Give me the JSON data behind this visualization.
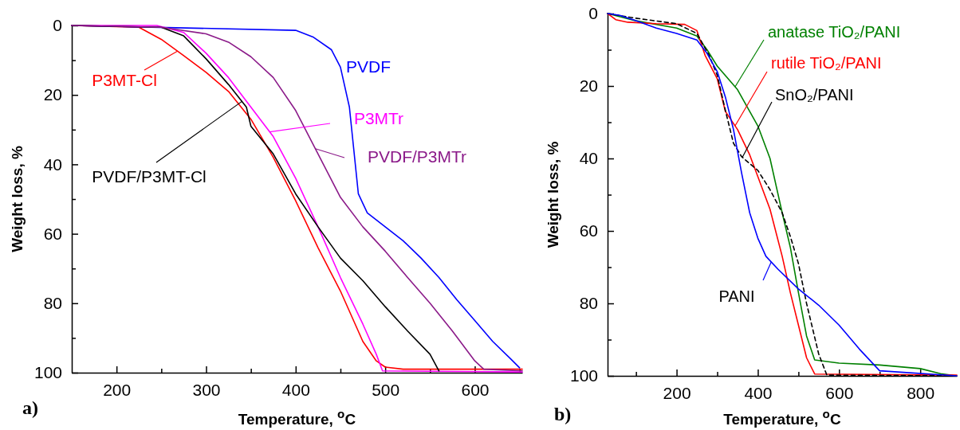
{
  "chart_data": [
    {
      "type": "line",
      "xlabel": "Temperature, $^{o}$C",
      "ylabel": "Weight loss, %",
      "annotations": [
        "a)"
      ],
      "xlim": [
        150,
        653
      ],
      "ylim": [
        100,
        0
      ],
      "xticks": [
        200,
        {
          "value": 250,
          "label": null
        },
        300,
        {
          "value": 350,
          "label": null
        },
        400,
        {
          "value": 450,
          "label": null
        },
        500,
        {
          "value": 550,
          "label": null
        },
        600,
        {
          "value": 650,
          "label": null
        }
      ],
      "yticks": [
        0,
        {
          "value": 10,
          "label": null
        },
        20,
        {
          "value": 30,
          "label": null
        },
        40,
        {
          "value": 50,
          "label": null
        },
        60,
        {
          "value": 70,
          "label": null
        },
        80,
        {
          "value": 90,
          "label": null
        },
        100
      ],
      "grid": false,
      "legend": "right",
      "marker": "none",
      "series": [
        {
          "name": "P3MT-Cl",
          "color": "#ff0000",
          "x": [
            150,
            225,
            250,
            275,
            300,
            325,
            350,
            375,
            400,
            425,
            450,
            475,
            490,
            500,
            520,
            653
          ],
          "values": [
            0,
            0.5,
            4,
            8.7,
            13.5,
            19,
            27,
            38,
            50.5,
            64,
            76.5,
            91,
            96.6,
            98.4,
            99,
            99
          ]
        },
        {
          "name": "PVDF",
          "color": "#0000ff",
          "x": [
            150,
            400,
            420,
            440,
            450,
            460,
            465,
            470,
            480,
            500,
            520,
            540,
            560,
            580,
            600,
            620,
            640,
            650
          ],
          "values": [
            0,
            1.4,
            3.4,
            7,
            12,
            23.5,
            36,
            48.5,
            54,
            58,
            62,
            67,
            72.6,
            79,
            85,
            91,
            96,
            98.6
          ]
        },
        {
          "name": "P3MTr",
          "color": "#ff00ff",
          "x": [
            150,
            245,
            275,
            300,
            325,
            350,
            375,
            400,
            425,
            450,
            475,
            490,
            497,
            653
          ],
          "values": [
            0,
            0,
            2,
            8,
            15,
            23.5,
            32,
            44,
            58,
            72.6,
            86,
            94.7,
            99.5,
            99.8
          ]
        },
        {
          "name": "PVDF/P3MT-Cl",
          "color": "#000000",
          "x": [
            150,
            250,
            275,
            300,
            325,
            345,
            350,
            375,
            400,
            425,
            450,
            475,
            500,
            525,
            550,
            560
          ],
          "values": [
            0,
            0.5,
            3,
            9.6,
            17,
            23.5,
            29,
            37,
            48.5,
            58,
            67,
            73.5,
            81,
            88,
            94.7,
            99.5
          ]
        },
        {
          "name": "PVDF/P3MTr",
          "color": "#8b1a89",
          "x": [
            150,
            250,
            300,
            325,
            350,
            375,
            400,
            425,
            450,
            475,
            500,
            525,
            550,
            575,
            600,
            610,
            653
          ],
          "values": [
            0,
            0.5,
            2.4,
            4.8,
            9,
            15,
            24.5,
            37,
            49.5,
            58,
            65,
            72.6,
            80,
            88,
            96.6,
            99,
            99.5
          ]
        }
      ]
    },
    {
      "type": "line",
      "xlabel": "Temperature, $^{o}$C",
      "ylabel": "Weight loss, %",
      "annotations": [
        "b)"
      ],
      "xlim": [
        30,
        890
      ],
      "ylim": [
        100,
        0
      ],
      "xticks": [
        {
          "value": 100,
          "label": null
        },
        200,
        {
          "value": 300,
          "label": null
        },
        400,
        {
          "value": 500,
          "label": null
        },
        600,
        {
          "value": 700,
          "label": null
        },
        800
      ],
      "yticks": [
        0,
        {
          "value": 10,
          "label": null
        },
        20,
        {
          "value": 30,
          "label": null
        },
        40,
        {
          "value": 50,
          "label": null
        },
        60,
        {
          "value": 70,
          "label": null
        },
        80,
        {
          "value": 90,
          "label": null
        },
        100
      ],
      "grid": false,
      "marker": "none",
      "series": [
        {
          "name": "anatase TiO₂/PANI",
          "color": "#008000",
          "x": [
            30,
            100,
            200,
            250,
            275,
            300,
            350,
            400,
            430,
            460,
            480,
            500,
            520,
            540,
            600,
            700,
            800,
            850,
            890
          ],
          "values": [
            0,
            2,
            4,
            6.2,
            10,
            14.5,
            21,
            31,
            40,
            55,
            64.5,
            77,
            89,
            95.6,
            96.5,
            97,
            98,
            99.4,
            100
          ]
        },
        {
          "name": "rutile TiO₂/PANI",
          "color": "#ff0000",
          "x": [
            30,
            50,
            80,
            150,
            220,
            250,
            270,
            300,
            320,
            350,
            380,
            400,
            430,
            460,
            480,
            500,
            520,
            540,
            890
          ],
          "values": [
            0,
            1.7,
            2.4,
            2.8,
            3,
            4.7,
            11.5,
            18,
            27,
            32,
            39,
            45,
            54,
            67,
            77,
            86,
            95,
            99.5,
            99.8
          ]
        },
        {
          "name": "SnO₂/PANI",
          "color": "#000000",
          "line_style": "dashed",
          "x": [
            30,
            100,
            200,
            250,
            280,
            300,
            320,
            340,
            360,
            400,
            430,
            460,
            480,
            500,
            520,
            550,
            570,
            890
          ],
          "values": [
            0,
            1.3,
            2.8,
            5.5,
            11.5,
            17,
            26.7,
            35.8,
            39.5,
            43.3,
            48.6,
            55,
            61.5,
            69,
            80,
            94,
            99.8,
            100
          ]
        },
        {
          "name": "PANI",
          "color": "#0000ff",
          "x": [
            30,
            60,
            100,
            150,
            200,
            250,
            275,
            300,
            320,
            340,
            360,
            380,
            400,
            420,
            450,
            500,
            550,
            600,
            650,
            700,
            890
          ],
          "values": [
            0,
            0.5,
            2,
            4,
            5.5,
            7.3,
            11,
            16,
            23,
            32,
            44,
            55,
            62,
            67,
            70.6,
            76,
            80.5,
            86,
            92.6,
            98.6,
            100
          ]
        }
      ]
    }
  ]
}
